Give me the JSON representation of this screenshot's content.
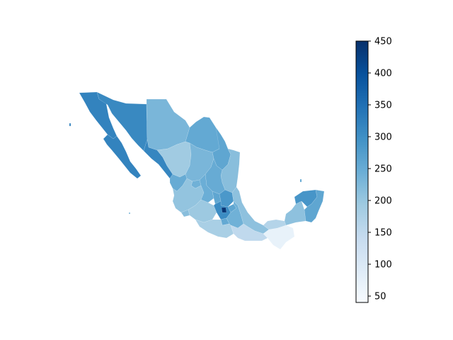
{
  "map": {
    "type": "choropleth",
    "region": "Mexico",
    "colormap": "Blues",
    "colors": {
      "low": "#f7fbff",
      "high": "#08306b",
      "ramp": [
        "#f7fbff",
        "#deebf7",
        "#c6dbef",
        "#9ecae1",
        "#6baed6",
        "#4292c6",
        "#2171b5",
        "#08519c",
        "#08306b"
      ]
    },
    "regions": [
      {
        "name": "Baja California",
        "value": 320
      },
      {
        "name": "Baja California Sur",
        "value": 320
      },
      {
        "name": "Sonora",
        "value": 310
      },
      {
        "name": "Chihuahua",
        "value": 230
      },
      {
        "name": "Coahuila",
        "value": 255
      },
      {
        "name": "Nuevo Leon",
        "value": 260
      },
      {
        "name": "Tamaulipas",
        "value": 215
      },
      {
        "name": "Sinaloa",
        "value": 315
      },
      {
        "name": "Durango",
        "value": 190
      },
      {
        "name": "Zacatecas",
        "value": 230
      },
      {
        "name": "San Luis Potosi",
        "value": 250
      },
      {
        "name": "Nayarit",
        "value": 250
      },
      {
        "name": "Jalisco",
        "value": 205
      },
      {
        "name": "Aguascalientes",
        "value": 240
      },
      {
        "name": "Guanajuato",
        "value": 245
      },
      {
        "name": "Queretaro",
        "value": 260
      },
      {
        "name": "Hidalgo",
        "value": 285
      },
      {
        "name": "Colima",
        "value": 215
      },
      {
        "name": "Michoacan",
        "value": 195
      },
      {
        "name": "Estado de Mexico",
        "value": 305
      },
      {
        "name": "Ciudad de Mexico",
        "value": 440
      },
      {
        "name": "Tlaxcala",
        "value": 260
      },
      {
        "name": "Puebla",
        "value": 240
      },
      {
        "name": "Morelos",
        "value": 255
      },
      {
        "name": "Veracruz",
        "value": 210
      },
      {
        "name": "Guerrero",
        "value": 180
      },
      {
        "name": "Oaxaca",
        "value": 150
      },
      {
        "name": "Chiapas",
        "value": 70
      },
      {
        "name": "Tabasco",
        "value": 165
      },
      {
        "name": "Campeche",
        "value": 210
      },
      {
        "name": "Yucatan",
        "value": 290
      },
      {
        "name": "Quintana Roo",
        "value": 260
      }
    ]
  },
  "colorbar": {
    "min": 40,
    "max": 450,
    "ticks": [
      {
        "value": 50,
        "label": "50"
      },
      {
        "value": 100,
        "label": "100"
      },
      {
        "value": 150,
        "label": "150"
      },
      {
        "value": 200,
        "label": "200"
      },
      {
        "value": 250,
        "label": "250"
      },
      {
        "value": 300,
        "label": "300"
      },
      {
        "value": 350,
        "label": "350"
      },
      {
        "value": 400,
        "label": "400"
      },
      {
        "value": 450,
        "label": "450"
      }
    ]
  }
}
